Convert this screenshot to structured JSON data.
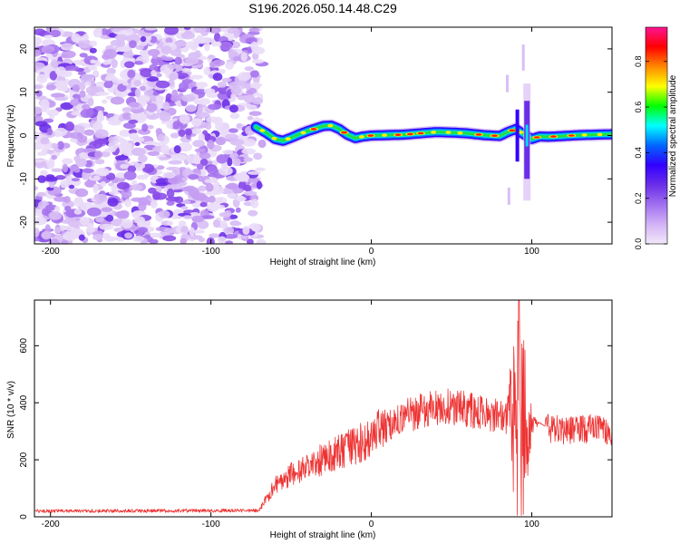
{
  "figure_title": "S196.2026.050.14.48.C29",
  "chart_data": [
    {
      "type": "heatmap",
      "title": "",
      "xlabel": "Height of straight line (km)",
      "ylabel": "Frequency (Hz)",
      "xlim": [
        -210,
        150
      ],
      "ylim": [
        -25,
        25
      ],
      "x_ticks": [
        -200,
        -100,
        0,
        100
      ],
      "x_tick_labels": [
        "-200",
        "-100",
        "0",
        "100"
      ],
      "y_ticks": [
        -20,
        -10,
        0,
        10,
        20
      ],
      "y_tick_labels": [
        "-20",
        "-10",
        "0",
        "10",
        "20"
      ],
      "noise_region_x": [
        -210,
        -68
      ],
      "signal_start_x": -72,
      "spike_x": 97,
      "ridge": {
        "x": [
          -72,
          -65,
          -60,
          -55,
          -50,
          -45,
          -40,
          -35,
          -30,
          -25,
          -20,
          -15,
          -10,
          -5,
          0,
          10,
          20,
          30,
          40,
          50,
          60,
          70,
          80,
          85,
          90,
          95,
          100,
          105,
          110,
          120,
          130,
          140,
          150
        ],
        "freq": [
          2.0,
          0.5,
          -0.8,
          -1.2,
          -0.5,
          0.3,
          1.0,
          1.6,
          2.2,
          2.3,
          1.5,
          0.2,
          -0.6,
          -0.2,
          0.0,
          0.1,
          0.2,
          0.5,
          0.8,
          0.7,
          0.5,
          0.1,
          -0.1,
          0.8,
          1.5,
          0.3,
          -0.8,
          -0.2,
          -0.3,
          -0.1,
          0.1,
          0.2,
          0.3
        ]
      },
      "colorbar": {
        "label": "Normalized spectral amplitude",
        "range": [
          0,
          0.95
        ],
        "ticks": [
          0,
          0.2,
          0.4,
          0.6,
          0.8
        ],
        "tick_labels": [
          "0.0",
          "0.2",
          "0.4",
          "0.6",
          "0.8"
        ],
        "colors": [
          "#f2e8fa",
          "#d2b3f5",
          "#a070f0",
          "#6a2ee8",
          "#3300ff",
          "#0066ff",
          "#00ffff",
          "#00ff00",
          "#ffff00",
          "#ff8800",
          "#ff0000",
          "#ff1493"
        ]
      }
    },
    {
      "type": "line",
      "title": "",
      "xlabel": "Height of straight line (km)",
      "ylabel": "SNR (10 * v/v)",
      "xlim": [
        -210,
        150
      ],
      "ylim": [
        0,
        760
      ],
      "x_ticks": [
        -200,
        -100,
        0,
        100
      ],
      "x_tick_labels": [
        "-200",
        "-100",
        "0",
        "100"
      ],
      "y_ticks": [
        0,
        200,
        400,
        600
      ],
      "y_tick_labels": [
        "0",
        "200",
        "400",
        "600"
      ],
      "color": "#ee3333",
      "envelope": {
        "x": [
          -210,
          -70,
          -67,
          -60,
          -50,
          -40,
          -30,
          -20,
          -10,
          0,
          10,
          20,
          30,
          40,
          50,
          60,
          70,
          80,
          85,
          90,
          95,
          100,
          105,
          110,
          120,
          130,
          140,
          150
        ],
        "y": [
          20,
          22,
          50,
          110,
          150,
          175,
          205,
          225,
          250,
          285,
          320,
          350,
          370,
          385,
          385,
          375,
          365,
          355,
          345,
          340,
          330,
          320,
          330,
          310,
          300,
          305,
          310,
          300
        ]
      },
      "spike_x": 92,
      "spike_peak": 760,
      "dip_min": 5
    }
  ]
}
